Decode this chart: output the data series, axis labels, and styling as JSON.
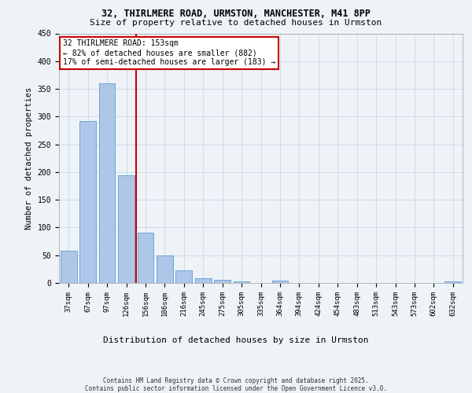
{
  "title_line1": "32, THIRLMERE ROAD, URMSTON, MANCHESTER, M41 8PP",
  "title_line2": "Size of property relative to detached houses in Urmston",
  "xlabel": "Distribution of detached houses by size in Urmston",
  "ylabel": "Number of detached properties",
  "footnote": "Contains HM Land Registry data © Crown copyright and database right 2025.\nContains public sector information licensed under the Open Government Licence v3.0.",
  "categories": [
    "37sqm",
    "67sqm",
    "97sqm",
    "126sqm",
    "156sqm",
    "186sqm",
    "216sqm",
    "245sqm",
    "275sqm",
    "305sqm",
    "335sqm",
    "364sqm",
    "394sqm",
    "424sqm",
    "454sqm",
    "483sqm",
    "513sqm",
    "543sqm",
    "573sqm",
    "602sqm",
    "632sqm"
  ],
  "values": [
    58,
    292,
    360,
    194,
    91,
    50,
    22,
    8,
    5,
    3,
    0,
    4,
    0,
    0,
    0,
    0,
    0,
    0,
    0,
    0,
    3
  ],
  "bar_color": "#aec6e8",
  "bar_edge_color": "#5a9fd4",
  "grid_color": "#c8d8e8",
  "background_color": "#eef3f8",
  "vline_color": "#cc0000",
  "vline_x": 3.5,
  "annotation_text": "32 THIRLMERE ROAD: 153sqm\n← 82% of detached houses are smaller (882)\n17% of semi-detached houses are larger (183) →",
  "annotation_box_facecolor": "#ffffff",
  "annotation_box_edgecolor": "#cc0000",
  "ylim": [
    0,
    450
  ],
  "yticks": [
    0,
    50,
    100,
    150,
    200,
    250,
    300,
    350,
    400,
    450
  ],
  "title1_fontsize": 8.5,
  "title2_fontsize": 8.0,
  "xlabel_fontsize": 8.0,
  "ylabel_fontsize": 7.5,
  "tick_fontsize": 6.5,
  "annot_fontsize": 7.0,
  "footnote_fontsize": 5.5
}
